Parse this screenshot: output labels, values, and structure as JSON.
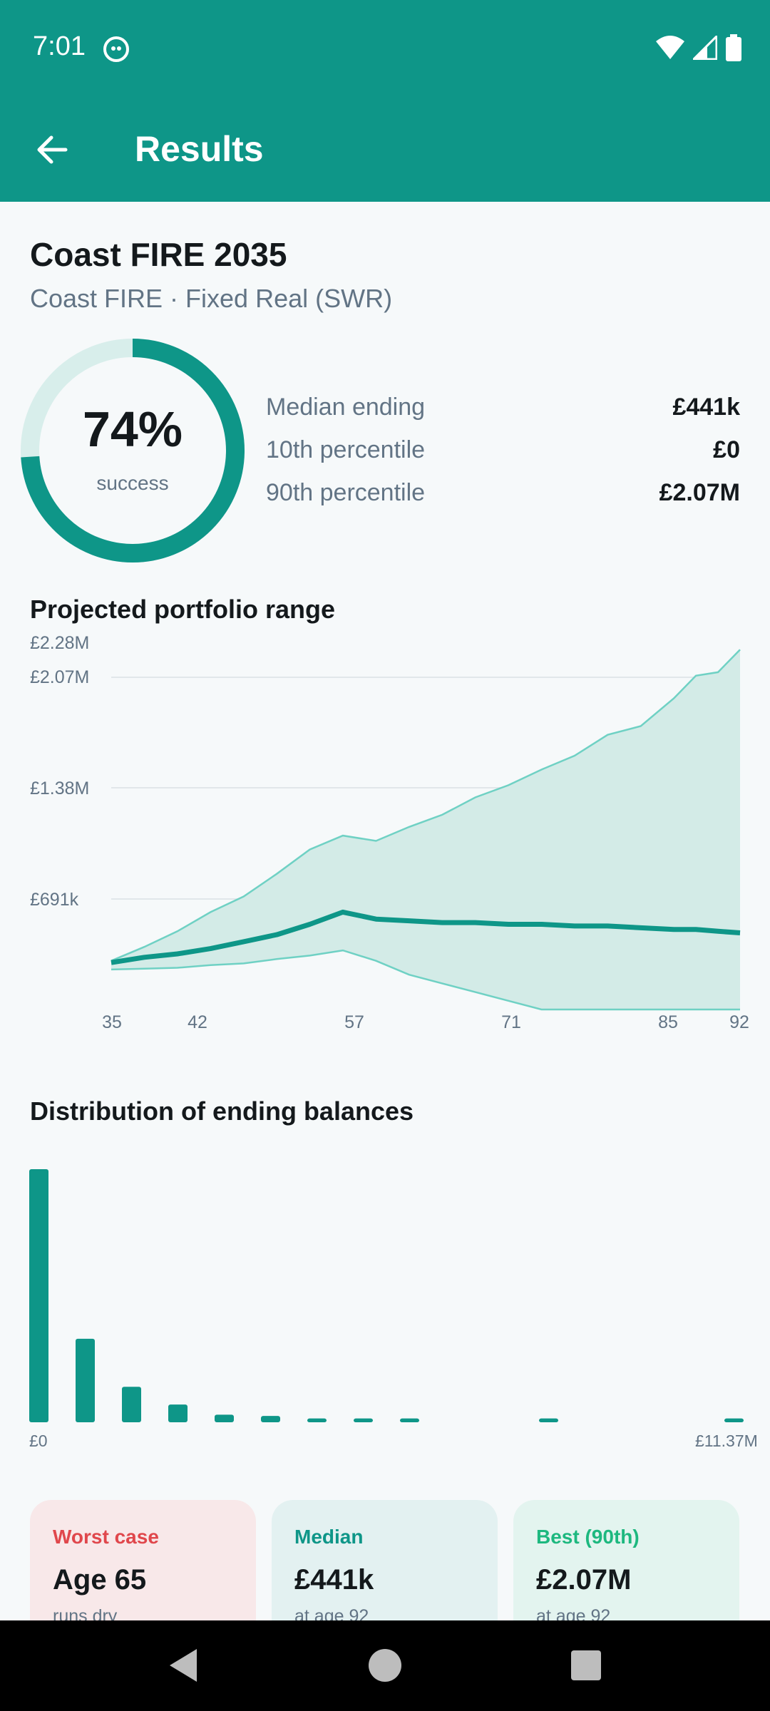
{
  "status_bar": {
    "time": "7:01"
  },
  "app_bar": {
    "title": "Results"
  },
  "plan": {
    "title": "Coast FIRE 2035",
    "subtitle": "Coast FIRE · Fixed Real (SWR)"
  },
  "success": {
    "percent": 74,
    "percent_label": "74%",
    "label": "success"
  },
  "stats": [
    {
      "label": "Median ending",
      "value": "£441k"
    },
    {
      "label": "10th percentile",
      "value": "£0"
    },
    {
      "label": "90th percentile",
      "value": "£2.07M"
    }
  ],
  "colors": {
    "primary": "#0e9688",
    "band_fill": "#d3ebe7",
    "band_line": "#6fd1c4",
    "worst": "#e0474c",
    "best": "#1db87f"
  },
  "chart_data": [
    {
      "type": "area",
      "title": "Projected portfolio range",
      "y_tick_labels": [
        "£2.28M",
        "£2.07M",
        "£1.38M",
        "£691k"
      ],
      "y_ticks": [
        2280000,
        2070000,
        1380000,
        691000
      ],
      "ylim": [
        0,
        2280000
      ],
      "x_tick_labels": [
        "35",
        "42",
        "57",
        "71",
        "85",
        "92"
      ],
      "xlim": [
        35,
        92
      ],
      "grid": true,
      "x": [
        35,
        38,
        41,
        44,
        47,
        50,
        53,
        56,
        59,
        62,
        65,
        68,
        71,
        74,
        77,
        80,
        83,
        86,
        88,
        90,
        92
      ],
      "series": [
        {
          "values": [
            280000,
            360000,
            450000,
            560000,
            650000,
            780000,
            920000,
            1000000,
            970000,
            1050000,
            1120000,
            1220000,
            1290000,
            1380000,
            1460000,
            1580000,
            1630000,
            1790000,
            1920000,
            1940000,
            2070000
          ]
        },
        {
          "values": [
            270000,
            300000,
            320000,
            350000,
            390000,
            430000,
            490000,
            560000,
            520000,
            510000,
            500000,
            500000,
            490000,
            490000,
            480000,
            480000,
            470000,
            460000,
            460000,
            450000,
            441000
          ]
        },
        {
          "values": [
            230000,
            235000,
            240000,
            255000,
            265000,
            290000,
            310000,
            340000,
            280000,
            200000,
            150000,
            100000,
            50000,
            0,
            0,
            0,
            0,
            0,
            0,
            0,
            0
          ]
        }
      ]
    },
    {
      "type": "bar",
      "title": "Distribution of ending balances",
      "x_tick_labels": [
        "£0",
        "£11.37M"
      ],
      "values": [
        100,
        33,
        14,
        7,
        3,
        2.5,
        1.5,
        1.5,
        1.5,
        0,
        0,
        1.5,
        0,
        0,
        0,
        1.5
      ]
    }
  ],
  "cards": [
    {
      "title": "Worst case",
      "value": "Age 65",
      "sub": "runs dry"
    },
    {
      "title": "Median",
      "value": "£441k",
      "sub": "at age 92"
    },
    {
      "title": "Best (90th)",
      "value": "£2.07M",
      "sub": "at age 92"
    }
  ]
}
